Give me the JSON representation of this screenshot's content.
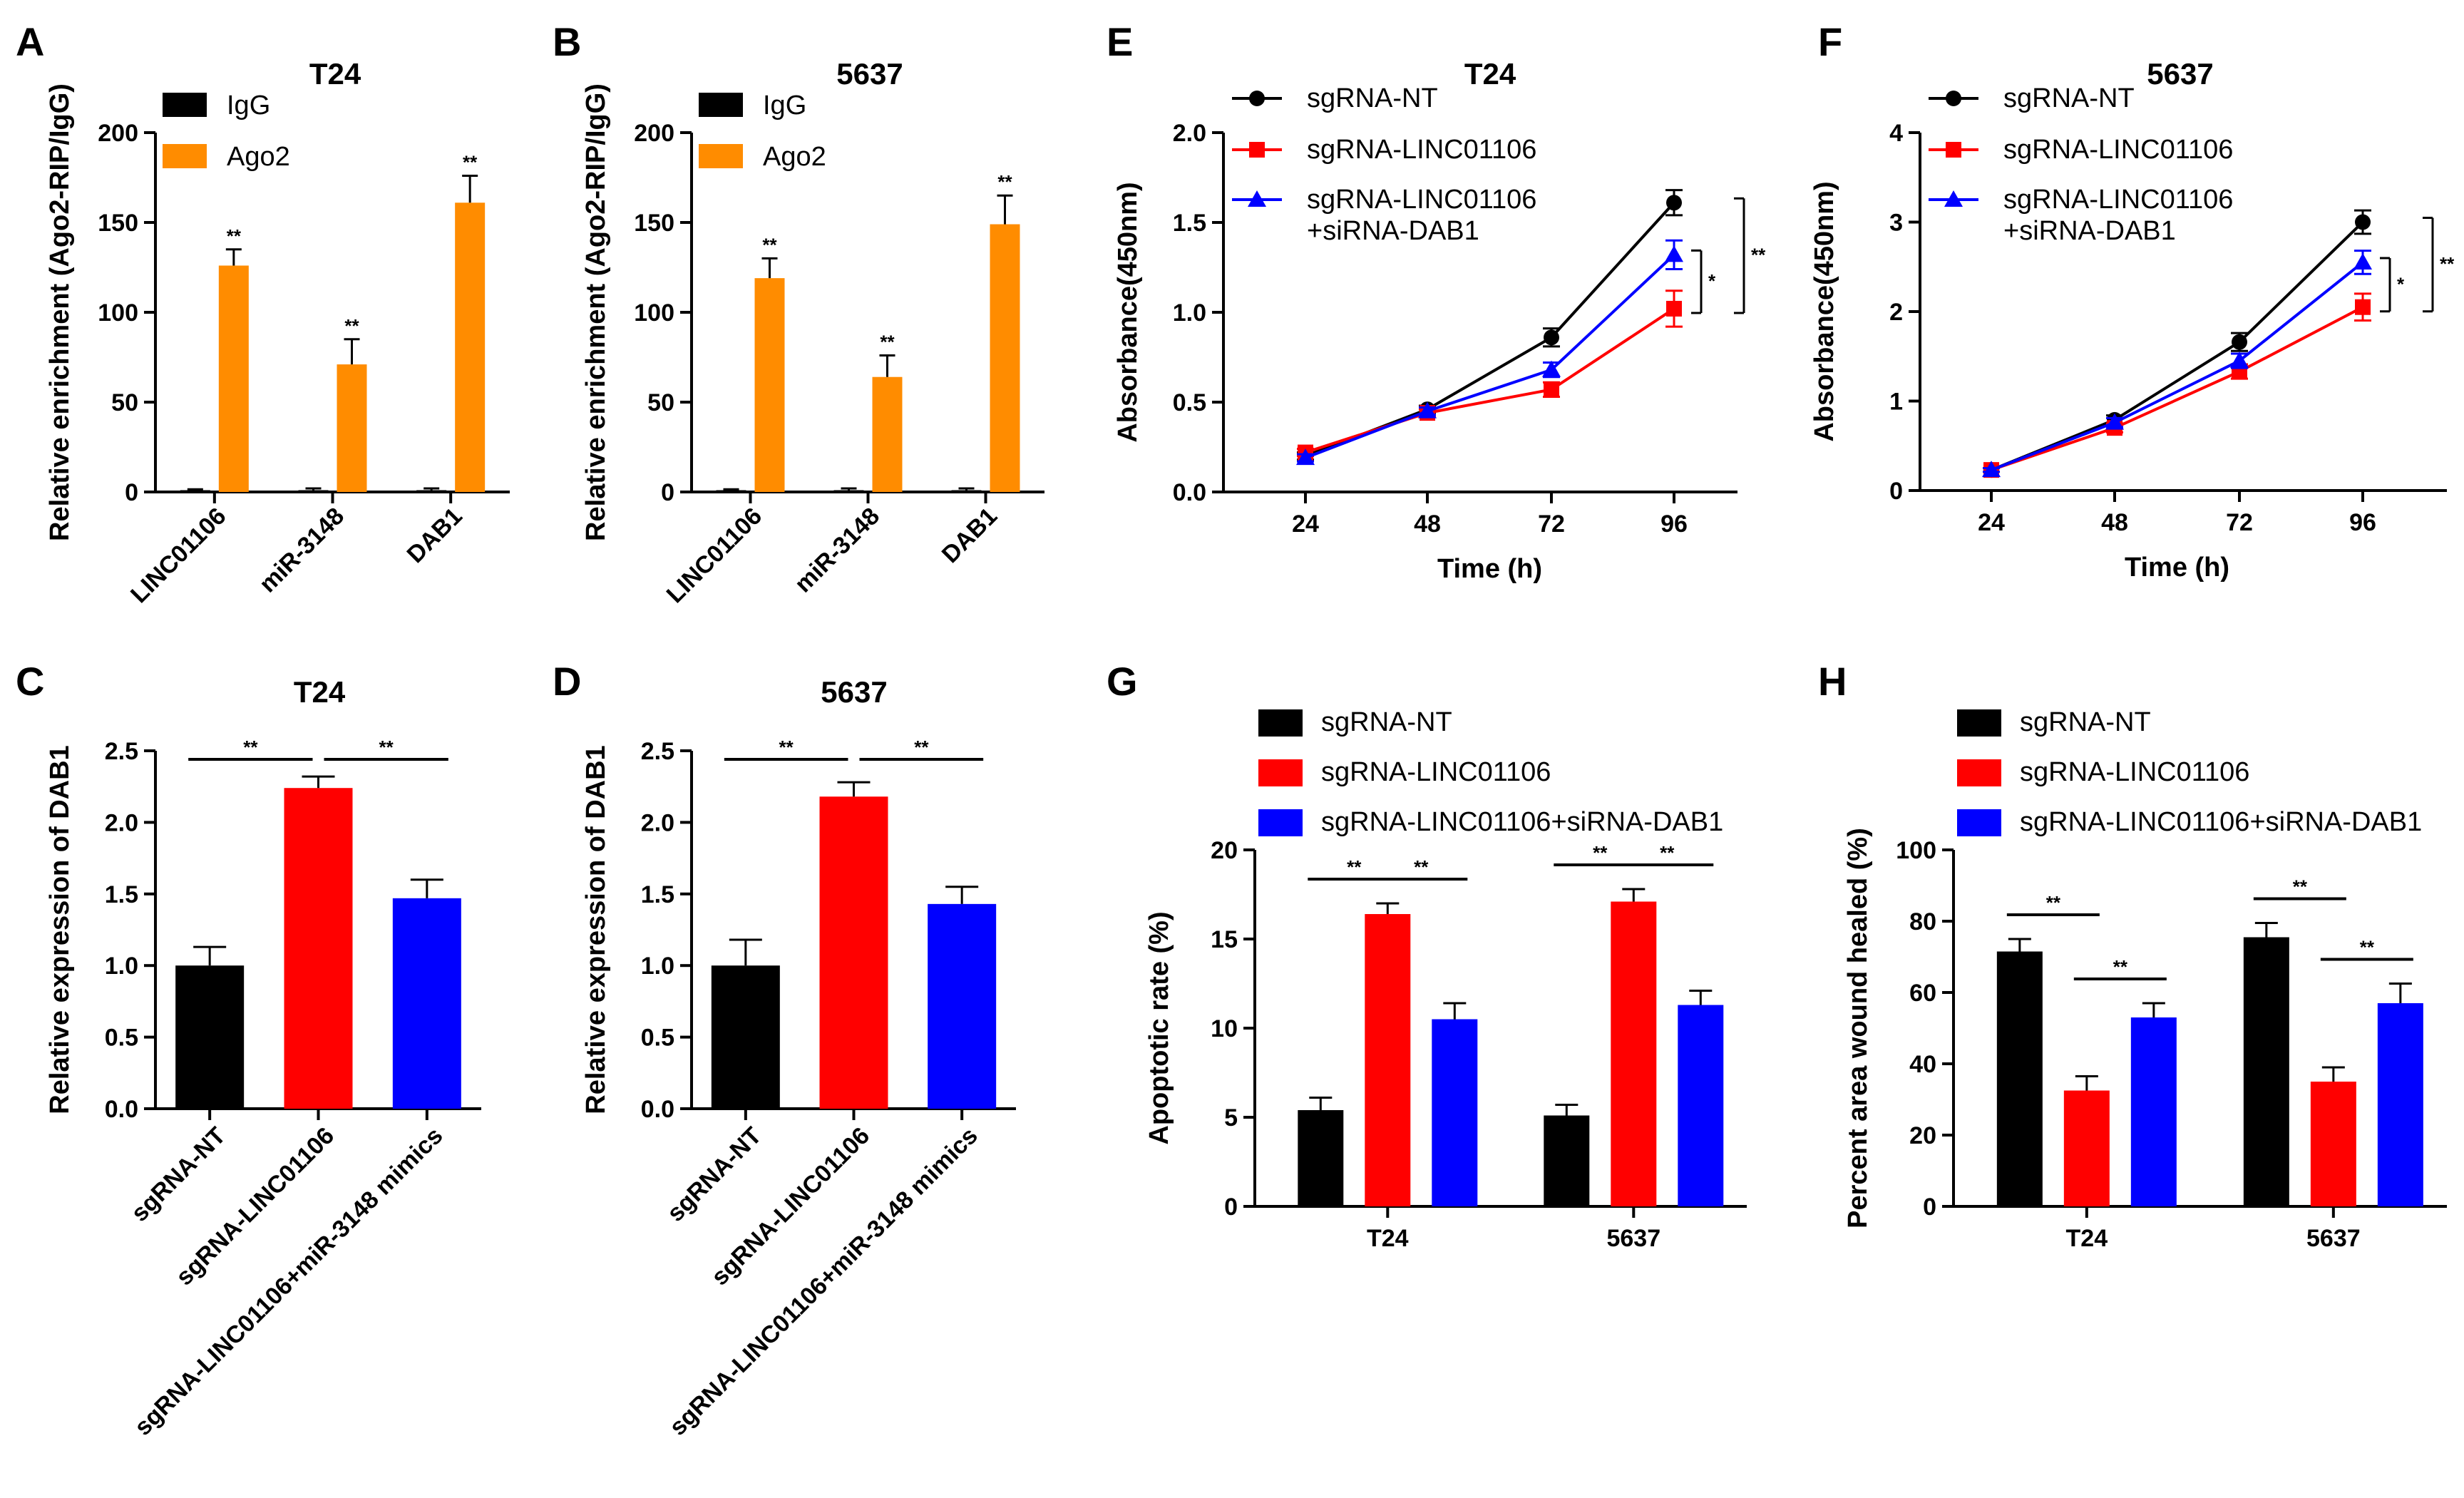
{
  "chart_data": [
    {
      "id": "A",
      "panel_label": "A",
      "type": "bar",
      "title": "T24",
      "ylabel": "Relative enrichment (Ago2-RIP/IgG)",
      "xlabel": "",
      "ylim": [
        0,
        200
      ],
      "yticks": [
        0,
        50,
        100,
        150,
        200
      ],
      "ytick_labels": [
        "0",
        "50",
        "100",
        "150",
        "200"
      ],
      "legend_position": "top-left",
      "categories": [
        "LINC01106",
        "miR-3148",
        "DAB1"
      ],
      "series": [
        {
          "name": "IgG",
          "color": "#000000",
          "values": [
            1,
            1,
            1
          ],
          "errors": [
            0.5,
            1,
            1
          ]
        },
        {
          "name": "Ago2",
          "color": "#ff8c00",
          "values": [
            126,
            71,
            161
          ],
          "errors": [
            9,
            14,
            15
          ]
        }
      ],
      "significance": [
        [
          "",
          "**"
        ],
        [
          "",
          "**"
        ],
        [
          "",
          "**"
        ]
      ]
    },
    {
      "id": "B",
      "panel_label": "B",
      "type": "bar",
      "title": "5637",
      "ylabel": "Relative enrichment (Ago2-RIP/IgG)",
      "xlabel": "",
      "ylim": [
        0,
        200
      ],
      "yticks": [
        0,
        50,
        100,
        150,
        200
      ],
      "ytick_labels": [
        "0",
        "50",
        "100",
        "150",
        "200"
      ],
      "legend_position": "top-left",
      "categories": [
        "LINC01106",
        "miR-3148",
        "DAB1"
      ],
      "series": [
        {
          "name": "IgG",
          "color": "#000000",
          "values": [
            1,
            1,
            1
          ],
          "errors": [
            0.5,
            1,
            1
          ]
        },
        {
          "name": "Ago2",
          "color": "#ff8c00",
          "values": [
            119,
            64,
            149
          ],
          "errors": [
            11,
            12,
            16
          ]
        }
      ],
      "significance": [
        [
          "",
          "**"
        ],
        [
          "",
          "**"
        ],
        [
          "",
          "**"
        ]
      ]
    },
    {
      "id": "C",
      "panel_label": "C",
      "type": "bar",
      "title": "T24",
      "ylabel": "Relative expression of DAB1",
      "xlabel": "",
      "ylim": [
        0,
        2.5
      ],
      "yticks": [
        0,
        0.5,
        1.0,
        1.5,
        2.0,
        2.5
      ],
      "ytick_labels": [
        "0.0",
        "0.5",
        "1.0",
        "1.5",
        "2.0",
        "2.5"
      ],
      "categories": [
        "sgRNA-NT",
        "sgRNA-LINC01106",
        "sgRNA-LINC01106+miR-3148 mimics"
      ],
      "values": [
        1.0,
        2.24,
        1.47
      ],
      "errors": [
        0.13,
        0.08,
        0.13
      ],
      "colors": [
        "#000000",
        "#ff0000",
        "#0000ff"
      ],
      "brackets": [
        {
          "from": 0,
          "to": 1,
          "label": "**"
        },
        {
          "from": 1,
          "to": 2,
          "label": "**"
        }
      ]
    },
    {
      "id": "D",
      "panel_label": "D",
      "type": "bar",
      "title": "5637",
      "ylabel": "Relative expression of DAB1",
      "xlabel": "",
      "ylim": [
        0,
        2.5
      ],
      "yticks": [
        0,
        0.5,
        1.0,
        1.5,
        2.0,
        2.5
      ],
      "ytick_labels": [
        "0.0",
        "0.5",
        "1.0",
        "1.5",
        "2.0",
        "2.5"
      ],
      "categories": [
        "sgRNA-NT",
        "sgRNA-LINC01106",
        "sgRNA-LINC01106+miR-3148 mimics"
      ],
      "values": [
        1.0,
        2.18,
        1.43
      ],
      "errors": [
        0.18,
        0.1,
        0.12
      ],
      "colors": [
        "#000000",
        "#ff0000",
        "#0000ff"
      ],
      "brackets": [
        {
          "from": 0,
          "to": 1,
          "label": "**"
        },
        {
          "from": 1,
          "to": 2,
          "label": "**"
        }
      ]
    },
    {
      "id": "E",
      "panel_label": "E",
      "type": "line",
      "title": "T24",
      "xlabel": "Time (h)",
      "ylabel": "Absorbance(450nm)",
      "x": [
        24,
        48,
        72,
        96
      ],
      "xtick_labels": [
        "24",
        "48",
        "72",
        "96"
      ],
      "ylim": [
        0,
        2.0
      ],
      "yticks": [
        0,
        0.5,
        1.0,
        1.5,
        2.0
      ],
      "ytick_labels": [
        "0.0",
        "0.5",
        "1.0",
        "1.5",
        "2.0"
      ],
      "legend_position": "top-left",
      "series": [
        {
          "name": "sgRNA-NT",
          "color": "#000000",
          "marker": "circle",
          "values": [
            0.2,
            0.46,
            0.86,
            1.61
          ],
          "errors": [
            0.02,
            0.02,
            0.05,
            0.07
          ]
        },
        {
          "name": "sgRNA-LINC01106",
          "color": "#ff0000",
          "marker": "square",
          "values": [
            0.22,
            0.44,
            0.57,
            1.02
          ],
          "errors": [
            0.02,
            0.02,
            0.04,
            0.1
          ]
        },
        {
          "name": "sgRNA-LINC01106 +siRNA-DAB1",
          "color": "#0000ff",
          "marker": "triangle",
          "values": [
            0.19,
            0.45,
            0.68,
            1.32
          ],
          "errors": [
            0.02,
            0.02,
            0.04,
            0.08
          ]
        }
      ],
      "legend_lines": [
        [
          "sgRNA-NT"
        ],
        [
          "sgRNA-LINC01106"
        ],
        [
          "sgRNA-LINC01106",
          "+siRNA-DAB1"
        ]
      ],
      "significance_brackets": [
        {
          "from_series": 2,
          "to_series": 1,
          "label": "*"
        },
        {
          "from_series": 0,
          "to_series": 1,
          "label": "**"
        }
      ]
    },
    {
      "id": "F",
      "panel_label": "F",
      "type": "line",
      "title": "5637",
      "xlabel": "Time (h)",
      "ylabel": "Absorbance(450nm)",
      "x": [
        24,
        48,
        72,
        96
      ],
      "xtick_labels": [
        "24",
        "48",
        "72",
        "96"
      ],
      "ylim": [
        0,
        4
      ],
      "yticks": [
        0,
        1,
        2,
        3,
        4
      ],
      "ytick_labels": [
        "0",
        "1",
        "2",
        "3",
        "4"
      ],
      "legend_position": "top-left",
      "series": [
        {
          "name": "sgRNA-NT",
          "color": "#000000",
          "marker": "circle",
          "values": [
            0.23,
            0.79,
            1.66,
            3.0
          ],
          "errors": [
            0.02,
            0.05,
            0.1,
            0.13
          ]
        },
        {
          "name": "sgRNA-LINC01106",
          "color": "#ff0000",
          "marker": "square",
          "values": [
            0.23,
            0.7,
            1.33,
            2.05
          ],
          "errors": [
            0.02,
            0.05,
            0.08,
            0.15
          ]
        },
        {
          "name": "sgRNA-LINC01106 +siRNA-DAB1",
          "color": "#0000ff",
          "marker": "triangle",
          "values": [
            0.23,
            0.76,
            1.45,
            2.55
          ],
          "errors": [
            0.02,
            0.05,
            0.08,
            0.13
          ]
        }
      ],
      "legend_lines": [
        [
          "sgRNA-NT"
        ],
        [
          "sgRNA-LINC01106"
        ],
        [
          "sgRNA-LINC01106",
          "+siRNA-DAB1"
        ]
      ],
      "significance_brackets": [
        {
          "from_series": 2,
          "to_series": 1,
          "label": "*"
        },
        {
          "from_series": 0,
          "to_series": 1,
          "label": "**"
        }
      ]
    },
    {
      "id": "G",
      "panel_label": "G",
      "type": "bar",
      "title": "",
      "ylabel": "Apoptotic rate (%)",
      "xlabel": "",
      "ylim": [
        0,
        20
      ],
      "yticks": [
        0,
        5,
        10,
        15,
        20
      ],
      "ytick_labels": [
        "0",
        "5",
        "10",
        "15",
        "20"
      ],
      "legend_position": "top",
      "categories": [
        "T24",
        "5637"
      ],
      "series": [
        {
          "name": "sgRNA-NT",
          "color": "#000000",
          "values": [
            5.4,
            5.1
          ],
          "errors": [
            0.7,
            0.6
          ]
        },
        {
          "name": "sgRNA-LINC01106",
          "color": "#ff0000",
          "values": [
            16.4,
            17.1
          ],
          "errors": [
            0.6,
            0.7
          ]
        },
        {
          "name": "sgRNA-LINC01106+siRNA-DAB1",
          "color": "#0000ff",
          "values": [
            10.5,
            11.3
          ],
          "errors": [
            0.9,
            0.8
          ]
        }
      ],
      "brackets": [
        {
          "group": 0,
          "from": 0,
          "to": 1,
          "label": "**"
        },
        {
          "group": 0,
          "from": 1,
          "to": 2,
          "label": "**"
        },
        {
          "group": 1,
          "from": 0,
          "to": 1,
          "label": "**"
        },
        {
          "group": 1,
          "from": 1,
          "to": 2,
          "label": "**"
        }
      ]
    },
    {
      "id": "H",
      "panel_label": "H",
      "type": "bar",
      "title": "",
      "ylabel": "Percent area wound healed (%)",
      "xlabel": "",
      "ylim": [
        0,
        100
      ],
      "yticks": [
        0,
        20,
        40,
        60,
        80,
        100
      ],
      "ytick_labels": [
        "0",
        "20",
        "40",
        "60",
        "80",
        "100"
      ],
      "legend_position": "top",
      "categories": [
        "T24",
        "5637"
      ],
      "series": [
        {
          "name": "sgRNA-NT",
          "color": "#000000",
          "values": [
            71.5,
            75.5
          ],
          "errors": [
            3.5,
            4
          ]
        },
        {
          "name": "sgRNA-LINC01106",
          "color": "#ff0000",
          "values": [
            32.5,
            35
          ],
          "errors": [
            4,
            4
          ]
        },
        {
          "name": "sgRNA-LINC01106+siRNA-DAB1",
          "color": "#0000ff",
          "values": [
            53,
            57
          ],
          "errors": [
            4,
            5.5
          ]
        }
      ],
      "brackets": [
        {
          "group": 0,
          "from": 0,
          "to": 1,
          "label": "**"
        },
        {
          "group": 0,
          "from": 1,
          "to": 2,
          "label": "**"
        },
        {
          "group": 1,
          "from": 0,
          "to": 1,
          "label": "**"
        },
        {
          "group": 1,
          "from": 1,
          "to": 2,
          "label": "**"
        }
      ]
    }
  ]
}
